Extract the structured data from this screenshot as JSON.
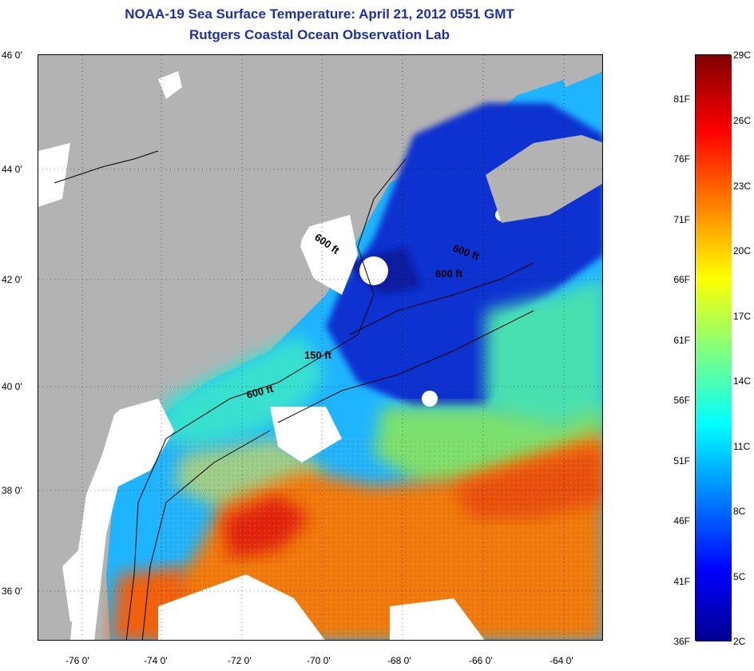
{
  "title": {
    "line1": "NOAA-19 Sea Surface Temperature:  April 21, 2012 0551 GMT",
    "line2": "Rutgers Coastal Ocean Observation Lab"
  },
  "map": {
    "lat_labels": [
      "46 0'",
      "44 0'",
      "42 0'",
      "40 0'",
      "38 0'",
      "36 0'"
    ],
    "lon_labels": [
      "-76 0'",
      "-74 0'",
      "-72 0'",
      "-70 0'",
      "-68 0'",
      "-66 0'",
      "-64 0'"
    ],
    "depth_labels": [
      "600 ft",
      "600 ft",
      "600 ft",
      "150 ft",
      "600 ft"
    ],
    "colors": {
      "land": "#b3b3b3",
      "cloud": "#ffffff",
      "cold": "#0a28c8",
      "cool": "#1fb4ff",
      "mid": "#38e0d0",
      "warm": "#f07a10",
      "hot": "#e0200a"
    }
  },
  "colorbar": {
    "fahrenheit_labels": [
      "81F",
      "76F",
      "71F",
      "66F",
      "61F",
      "56F",
      "51F",
      "46F",
      "41F",
      "36F"
    ],
    "celsius_labels": [
      "29C",
      "26C",
      "23C",
      "20C",
      "17C",
      "14C",
      "11C",
      "8C",
      "5C",
      "2C"
    ],
    "min_c": 2,
    "max_c": 29
  }
}
